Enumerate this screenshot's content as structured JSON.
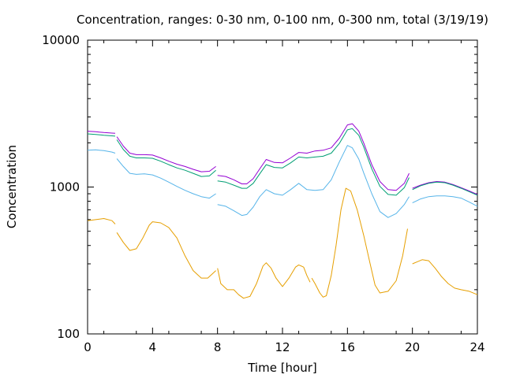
{
  "chart_data": {
    "type": "line",
    "title": "Concentration, ranges: 0-30 nm, 0-100 nm, 0-300 nm, total (3/19/19)",
    "xlabel": "Time [hour]",
    "ylabel": "Concentration",
    "xlim": [
      0,
      24
    ],
    "ylim": [
      100,
      10000
    ],
    "yscale": "log",
    "x_ticks": [
      0,
      4,
      8,
      12,
      16,
      20,
      24
    ],
    "x_tick_labels": [
      "0",
      "4",
      "8",
      "12",
      "16",
      "20",
      "24"
    ],
    "y_ticks": [
      100,
      1000,
      10000
    ],
    "y_tick_labels": [
      "100",
      "1000",
      "10000"
    ],
    "grid": false,
    "legend": "none",
    "series": [
      {
        "color": "#9400d3",
        "segments": [
          [
            [
              0,
              2400
            ],
            [
              0.5,
              2380
            ],
            [
              1,
              2350
            ],
            [
              1.5,
              2330
            ],
            [
              1.7,
              2320
            ]
          ],
          [
            [
              1.8,
              2200
            ],
            [
              2.2,
              1900
            ],
            [
              2.6,
              1700
            ],
            [
              3,
              1660
            ],
            [
              3.5,
              1660
            ],
            [
              4,
              1650
            ],
            [
              4.5,
              1580
            ],
            [
              5,
              1500
            ],
            [
              5.5,
              1430
            ],
            [
              6,
              1380
            ],
            [
              6.5,
              1320
            ],
            [
              7,
              1270
            ],
            [
              7.5,
              1280
            ],
            [
              7.9,
              1380
            ]
          ],
          [
            [
              8,
              1200
            ],
            [
              8.5,
              1180
            ],
            [
              9,
              1120
            ],
            [
              9.5,
              1050
            ],
            [
              9.8,
              1050
            ],
            [
              10.2,
              1140
            ],
            [
              10.6,
              1330
            ],
            [
              11,
              1540
            ],
            [
              11.5,
              1470
            ],
            [
              12,
              1460
            ],
            [
              12.5,
              1580
            ],
            [
              13,
              1720
            ],
            [
              13.5,
              1700
            ],
            [
              14,
              1760
            ],
            [
              14.5,
              1780
            ],
            [
              15,
              1850
            ],
            [
              15.5,
              2150
            ],
            [
              16,
              2650
            ],
            [
              16.3,
              2700
            ],
            [
              16.7,
              2400
            ],
            [
              17,
              2000
            ],
            [
              17.5,
              1420
            ],
            [
              18,
              1090
            ],
            [
              18.5,
              960
            ],
            [
              19,
              950
            ],
            [
              19.5,
              1060
            ],
            [
              19.8,
              1240
            ]
          ],
          [
            [
              20,
              980
            ],
            [
              20.5,
              1030
            ],
            [
              21,
              1070
            ],
            [
              21.5,
              1090
            ],
            [
              22,
              1080
            ],
            [
              22.5,
              1040
            ],
            [
              23,
              990
            ],
            [
              23.5,
              940
            ],
            [
              24,
              890
            ]
          ]
        ]
      },
      {
        "color": "#009e73",
        "segments": [
          [
            [
              0,
              2300
            ],
            [
              0.5,
              2280
            ],
            [
              1,
              2250
            ],
            [
              1.5,
              2230
            ],
            [
              1.7,
              2220
            ]
          ],
          [
            [
              1.8,
              2100
            ],
            [
              2.2,
              1800
            ],
            [
              2.6,
              1620
            ],
            [
              3,
              1580
            ],
            [
              3.5,
              1580
            ],
            [
              4,
              1570
            ],
            [
              4.5,
              1500
            ],
            [
              5,
              1420
            ],
            [
              5.5,
              1350
            ],
            [
              6,
              1300
            ],
            [
              6.5,
              1240
            ],
            [
              7,
              1180
            ],
            [
              7.5,
              1190
            ],
            [
              7.9,
              1300
            ]
          ],
          [
            [
              8,
              1100
            ],
            [
              8.5,
              1080
            ],
            [
              9,
              1030
            ],
            [
              9.5,
              980
            ],
            [
              9.8,
              980
            ],
            [
              10.2,
              1060
            ],
            [
              10.6,
              1230
            ],
            [
              11,
              1420
            ],
            [
              11.5,
              1360
            ],
            [
              12,
              1350
            ],
            [
              12.5,
              1460
            ],
            [
              13,
              1600
            ],
            [
              13.5,
              1580
            ],
            [
              14,
              1600
            ],
            [
              14.5,
              1620
            ],
            [
              15,
              1700
            ],
            [
              15.5,
              1980
            ],
            [
              16,
              2450
            ],
            [
              16.3,
              2500
            ],
            [
              16.7,
              2250
            ],
            [
              17,
              1880
            ],
            [
              17.5,
              1330
            ],
            [
              18,
              1010
            ],
            [
              18.5,
              890
            ],
            [
              19,
              880
            ],
            [
              19.5,
              990
            ],
            [
              19.8,
              1160
            ]
          ],
          [
            [
              20,
              960
            ],
            [
              20.5,
              1020
            ],
            [
              21,
              1060
            ],
            [
              21.5,
              1080
            ],
            [
              22,
              1070
            ],
            [
              22.5,
              1030
            ],
            [
              23,
              980
            ],
            [
              23.5,
              930
            ],
            [
              24,
              880
            ]
          ]
        ]
      },
      {
        "color": "#56b4e9",
        "segments": [
          [
            [
              0,
              1780
            ],
            [
              0.5,
              1790
            ],
            [
              1,
              1770
            ],
            [
              1.5,
              1730
            ],
            [
              1.7,
              1700
            ]
          ],
          [
            [
              1.8,
              1560
            ],
            [
              2.2,
              1380
            ],
            [
              2.6,
              1240
            ],
            [
              3,
              1220
            ],
            [
              3.5,
              1230
            ],
            [
              4,
              1210
            ],
            [
              4.5,
              1150
            ],
            [
              5,
              1080
            ],
            [
              5.5,
              1010
            ],
            [
              6,
              950
            ],
            [
              6.5,
              900
            ],
            [
              7,
              860
            ],
            [
              7.5,
              840
            ],
            [
              7.9,
              900
            ]
          ],
          [
            [
              8,
              760
            ],
            [
              8.5,
              740
            ],
            [
              9,
              690
            ],
            [
              9.5,
              640
            ],
            [
              9.8,
              650
            ],
            [
              10.2,
              730
            ],
            [
              10.6,
              860
            ],
            [
              11,
              960
            ],
            [
              11.5,
              900
            ],
            [
              12,
              880
            ],
            [
              12.5,
              960
            ],
            [
              13,
              1060
            ],
            [
              13.5,
              960
            ],
            [
              14,
              950
            ],
            [
              14.5,
              960
            ],
            [
              15,
              1120
            ],
            [
              15.5,
              1480
            ],
            [
              16,
              1920
            ],
            [
              16.3,
              1850
            ],
            [
              16.7,
              1550
            ],
            [
              17,
              1250
            ],
            [
              17.5,
              900
            ],
            [
              18,
              680
            ],
            [
              18.5,
              620
            ],
            [
              19,
              660
            ],
            [
              19.5,
              760
            ],
            [
              19.8,
              860
            ]
          ],
          [
            [
              20,
              780
            ],
            [
              20.5,
              830
            ],
            [
              21,
              860
            ],
            [
              21.5,
              870
            ],
            [
              22,
              870
            ],
            [
              22.5,
              860
            ],
            [
              23,
              840
            ],
            [
              23.5,
              790
            ],
            [
              24,
              740
            ]
          ]
        ]
      },
      {
        "color": "#e69f00",
        "segments": [
          [
            [
              0,
              590
            ],
            [
              0.5,
              600
            ],
            [
              1,
              610
            ],
            [
              1.5,
              590
            ],
            [
              1.7,
              560
            ]
          ],
          [
            [
              1.8,
              490
            ],
            [
              2.2,
              420
            ],
            [
              2.6,
              370
            ],
            [
              3,
              380
            ],
            [
              3.4,
              450
            ],
            [
              3.8,
              550
            ],
            [
              4,
              580
            ],
            [
              4.5,
              570
            ],
            [
              5,
              530
            ],
            [
              5.5,
              450
            ],
            [
              6,
              340
            ],
            [
              6.5,
              270
            ],
            [
              7,
              240
            ],
            [
              7.4,
              240
            ],
            [
              7.9,
              270
            ]
          ],
          [
            [
              8,
              280
            ],
            [
              8.2,
              220
            ],
            [
              8.6,
              200
            ],
            [
              9,
              200
            ],
            [
              9.3,
              185
            ],
            [
              9.6,
              175
            ],
            [
              10,
              180
            ],
            [
              10.4,
              220
            ],
            [
              10.8,
              290
            ],
            [
              11,
              305
            ],
            [
              11.3,
              280
            ],
            [
              11.6,
              240
            ],
            [
              12,
              210
            ],
            [
              12.4,
              240
            ],
            [
              12.8,
              285
            ],
            [
              13,
              295
            ],
            [
              13.3,
              285
            ],
            [
              13.5,
              250
            ],
            [
              13.7,
              225
            ]
          ],
          [
            [
              13.8,
              240
            ],
            [
              14,
              220
            ],
            [
              14.3,
              190
            ],
            [
              14.5,
              178
            ],
            [
              14.7,
              182
            ],
            [
              15,
              250
            ],
            [
              15.3,
              400
            ],
            [
              15.6,
              700
            ],
            [
              15.9,
              980
            ],
            [
              16.2,
              940
            ],
            [
              16.6,
              700
            ],
            [
              17,
              470
            ],
            [
              17.4,
              300
            ],
            [
              17.7,
              215
            ],
            [
              18,
              190
            ],
            [
              18.5,
              195
            ],
            [
              19,
              230
            ],
            [
              19.4,
              340
            ],
            [
              19.7,
              520
            ]
          ],
          [
            [
              20,
              300
            ],
            [
              20.3,
              310
            ],
            [
              20.6,
              320
            ],
            [
              21,
              315
            ],
            [
              21.4,
              280
            ],
            [
              21.8,
              245
            ],
            [
              22.2,
              220
            ],
            [
              22.6,
              205
            ],
            [
              23,
              200
            ],
            [
              23.5,
              195
            ],
            [
              24,
              185
            ]
          ]
        ]
      }
    ]
  }
}
